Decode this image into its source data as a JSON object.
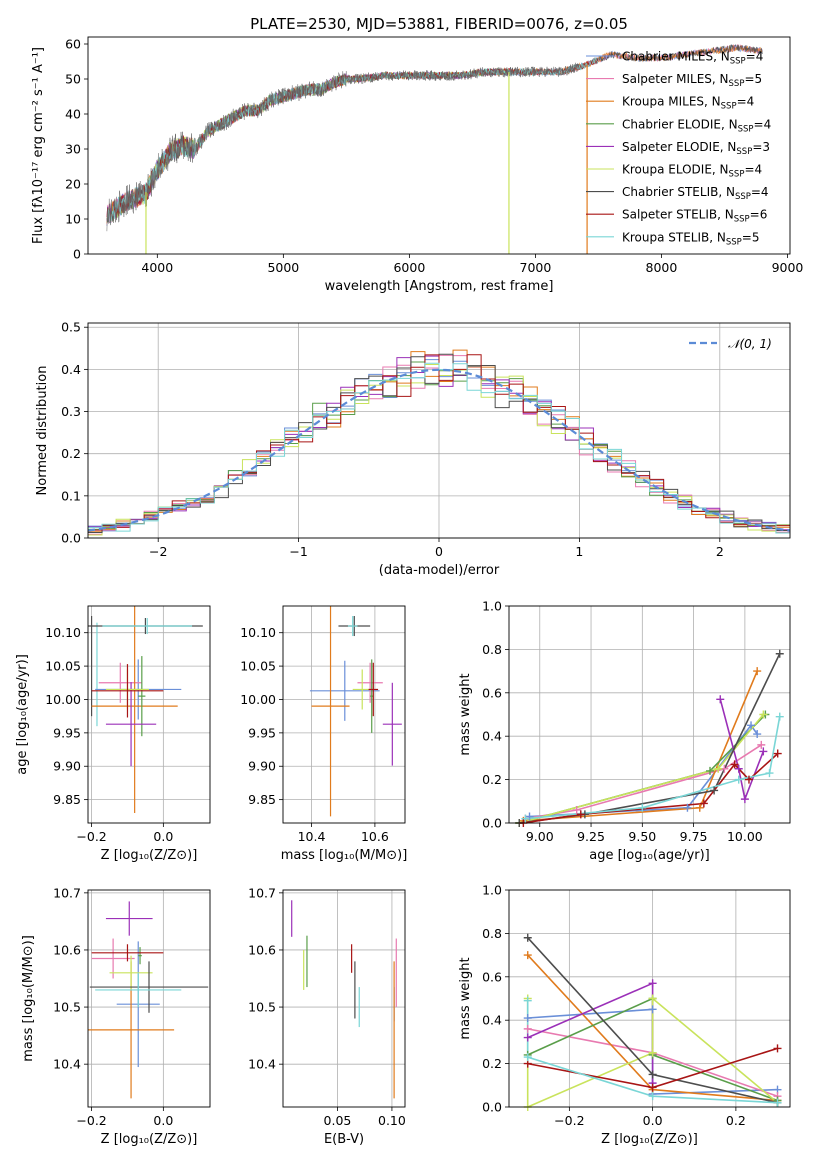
{
  "colors": {
    "Chabrier MILES": "#6a8fd8",
    "Salpeter MILES": "#e87ab0",
    "Kroupa MILES": "#e07b1d",
    "Chabrier ELODIE": "#5a9e4a",
    "Salpeter ELODIE": "#9b30b8",
    "Kroupa ELODIE": "#c9e35c",
    "Chabrier STELIB": "#4d4d4d",
    "Salpeter STELIB": "#a81515",
    "Kroupa STELIB": "#7ad6d6"
  },
  "chart_data": [
    {
      "id": "spectrum",
      "type": "line",
      "title": "PLATE=2530, MJD=53881, FIBERID=0076, z=0.05",
      "xlabel": "wavelength [Angstrom, rest frame]",
      "ylabel": "Flux [fλ10⁻¹⁷ erg cm⁻² s⁻¹ A⁻¹]",
      "xlim": [
        3450,
        9020
      ],
      "ylim": [
        0,
        62
      ],
      "xticks": [
        "4000",
        "5000",
        "6000",
        "7000",
        "8000",
        "9000"
      ],
      "yticks": [
        "0",
        "10",
        "20",
        "30",
        "40",
        "50",
        "60"
      ],
      "legend": "right",
      "continuum": [
        [
          3600,
          11
        ],
        [
          3750,
          15
        ],
        [
          3900,
          17
        ],
        [
          4000,
          24
        ],
        [
          4100,
          29
        ],
        [
          4200,
          31
        ],
        [
          4300,
          30
        ],
        [
          4400,
          35
        ],
        [
          4500,
          37
        ],
        [
          4600,
          39
        ],
        [
          4700,
          41
        ],
        [
          4800,
          41
        ],
        [
          4900,
          44
        ],
        [
          5000,
          45
        ],
        [
          5100,
          46
        ],
        [
          5200,
          47
        ],
        [
          5300,
          47
        ],
        [
          5400,
          49
        ],
        [
          5500,
          50
        ],
        [
          5600,
          50
        ],
        [
          5800,
          51
        ],
        [
          6000,
          51
        ],
        [
          6200,
          51
        ],
        [
          6400,
          51
        ],
        [
          6600,
          52
        ],
        [
          6800,
          52
        ],
        [
          7000,
          52
        ],
        [
          7200,
          52
        ],
        [
          7400,
          54
        ],
        [
          7600,
          57
        ],
        [
          7800,
          56
        ],
        [
          8000,
          56
        ],
        [
          8200,
          57
        ],
        [
          8400,
          58
        ],
        [
          8600,
          59
        ],
        [
          8800,
          58
        ]
      ],
      "data_end": 7350,
      "legend_entries": [
        {
          "model": "Chabrier MILES",
          "label": "Chabrier MILES, N",
          "sub": "SSP",
          "n": "=4"
        },
        {
          "model": "Salpeter MILES",
          "label": "Salpeter MILES, N",
          "sub": "SSP",
          "n": "=5"
        },
        {
          "model": "Kroupa MILES",
          "label": "Kroupa MILES, N",
          "sub": "SSP",
          "n": "=4"
        },
        {
          "model": "Chabrier ELODIE",
          "label": "Chabrier ELODIE, N",
          "sub": "SSP",
          "n": "=4"
        },
        {
          "model": "Salpeter ELODIE",
          "label": "Salpeter ELODIE, N",
          "sub": "SSP",
          "n": "=3"
        },
        {
          "model": "Kroupa ELODIE",
          "label": "Kroupa ELODIE, N",
          "sub": "SSP",
          "n": "=4"
        },
        {
          "model": "Chabrier STELIB",
          "label": "Chabrier STELIB, N",
          "sub": "SSP",
          "n": "=4"
        },
        {
          "model": "Salpeter STELIB",
          "label": "Salpeter STELIB, N",
          "sub": "SSP",
          "n": "=6"
        },
        {
          "model": "Kroupa STELIB",
          "label": "Kroupa STELIB, N",
          "sub": "SSP",
          "n": "=5"
        }
      ]
    },
    {
      "id": "residuals",
      "type": "line",
      "xlabel": "(data-model)/error",
      "ylabel": "Normed distribution",
      "xlim": [
        -2.5,
        2.5
      ],
      "ylim": [
        0,
        0.51
      ],
      "xticks": [
        "−2",
        "−1",
        "0",
        "1",
        "2"
      ],
      "yticks": [
        "0.0",
        "0.1",
        "0.2",
        "0.3",
        "0.4",
        "0.5"
      ],
      "grid": true,
      "bins": 50,
      "legend": "top-right",
      "legend_label": "𝒩(0, 1)",
      "gaussian": {
        "mean": 0,
        "sigma": 1
      }
    },
    {
      "id": "age_vs_Z",
      "type": "scatter",
      "xlabel": "Z [log₁₀(Z/Z⊙)]",
      "ylabel": "age  [log₁₀(age/yr)]",
      "xlim": [
        -0.21,
        0.13
      ],
      "ylim": [
        9.815,
        10.14
      ],
      "xticks": [
        "−0.2",
        "0.0"
      ],
      "yticks": [
        "9.85",
        "9.90",
        "9.95",
        "10.00",
        "10.05",
        "10.10"
      ],
      "grid": true,
      "points": [
        {
          "model": "Chabrier MILES",
          "x": -0.07,
          "xerr": 0.12,
          "y": 10.015,
          "yerr": 0.045
        },
        {
          "model": "Salpeter MILES",
          "x": -0.12,
          "xerr": 0.06,
          "y": 10.025,
          "yerr": 0.03
        },
        {
          "model": "Kroupa MILES",
          "x": -0.08,
          "xerr": 0.12,
          "y": 9.99,
          "yerr": 0.16
        },
        {
          "model": "Chabrier ELODIE",
          "x": -0.06,
          "xerr": 0.01,
          "y": 10.005,
          "yerr": 0.06
        },
        {
          "model": "Salpeter ELODIE",
          "x": -0.09,
          "xerr": 0.07,
          "y": 9.963,
          "yerr": 0.063
        },
        {
          "model": "Kroupa ELODIE",
          "x": -0.1,
          "xerr": 0.06,
          "y": 10.015,
          "yerr": 0.03
        },
        {
          "model": "Chabrier STELIB",
          "x": -0.05,
          "xerr": 0.16,
          "y": 10.11,
          "yerr": 0.012
        },
        {
          "model": "Salpeter STELIB",
          "x": -0.1,
          "xerr": 0.1,
          "y": 10.013,
          "yerr": 0.04
        },
        {
          "model": "Kroupa STELIB",
          "x": -0.045,
          "xerr": 0.125,
          "y": 10.11,
          "yerr": 0.012
        }
      ],
      "vert_errs": [
        {
          "model": "Chabrier STELIB",
          "x": -0.2,
          "ylo": 9.975,
          "yhi": 10.125
        },
        {
          "model": "Kroupa STELIB",
          "x": -0.185,
          "ylo": 9.96,
          "yhi": 10.115
        }
      ]
    },
    {
      "id": "age_vs_mass",
      "type": "scatter",
      "xlabel": "mass [log₁₀(M/M⊙)]",
      "ylabel": "",
      "xlim": [
        10.31,
        10.695
      ],
      "ylim": [
        9.815,
        10.14
      ],
      "xticks": [
        "10.4",
        "10.6"
      ],
      "yticks": [
        "9.85",
        "9.90",
        "9.95",
        "10.00",
        "10.05",
        "10.10"
      ],
      "grid": true,
      "points": [
        {
          "model": "Chabrier MILES",
          "x": 10.505,
          "xerr": 0.11,
          "y": 10.013,
          "yerr": 0.045
        },
        {
          "model": "Salpeter MILES",
          "x": 10.585,
          "xerr": 0.04,
          "y": 10.025,
          "yerr": 0.03
        },
        {
          "model": "Kroupa MILES",
          "x": 10.46,
          "xerr": 0.06,
          "y": 9.99,
          "yerr": 0.165
        },
        {
          "model": "Chabrier ELODIE",
          "x": 10.59,
          "xerr": 0.005,
          "y": 10.005,
          "yerr": 0.055
        },
        {
          "model": "Salpeter ELODIE",
          "x": 10.655,
          "xerr": 0.03,
          "y": 9.963,
          "yerr": 0.062
        },
        {
          "model": "Kroupa ELODIE",
          "x": 10.56,
          "xerr": 0.03,
          "y": 10.015,
          "yerr": 0.03
        },
        {
          "model": "Chabrier STELIB",
          "x": 10.535,
          "xerr": 0.05,
          "y": 10.11,
          "yerr": 0.015
        },
        {
          "model": "Salpeter STELIB",
          "x": 10.595,
          "xerr": 0.015,
          "y": 10.015,
          "yerr": 0.04
        },
        {
          "model": "Kroupa STELIB",
          "x": 10.53,
          "xerr": 0.015,
          "y": 10.11,
          "yerr": 0.015
        }
      ]
    },
    {
      "id": "mw_vs_age",
      "type": "line",
      "xlabel": "age  [log₁₀(age/yr)]",
      "ylabel": "mass weight",
      "xlim": [
        8.85,
        10.22
      ],
      "ylim": [
        0,
        1.0
      ],
      "xticks": [
        "9.00",
        "9.25",
        "9.50",
        "9.75",
        "10.00"
      ],
      "yticks": [
        "0.0",
        "0.2",
        "0.4",
        "0.6",
        "0.8",
        "1.0"
      ],
      "grid": true,
      "series": [
        {
          "model": "Chabrier MILES",
          "x": [
            8.95,
            9.72,
            10.03,
            10.06
          ],
          "y": [
            0.03,
            0.07,
            0.45,
            0.41
          ]
        },
        {
          "model": "Salpeter MILES",
          "x": [
            8.93,
            9.18,
            9.9,
            10.08
          ],
          "y": [
            0.02,
            0.06,
            0.25,
            0.36
          ]
        },
        {
          "model": "Kroupa MILES",
          "x": [
            8.92,
            9.78,
            10.06
          ],
          "y": [
            0.01,
            0.07,
            0.7
          ]
        },
        {
          "model": "Chabrier ELODIE",
          "x": [
            8.9,
            9.83,
            10.1
          ],
          "y": [
            0.0,
            0.24,
            0.5
          ]
        },
        {
          "model": "Salpeter ELODIE",
          "x": [
            9.88,
            9.97,
            10.0,
            10.09
          ],
          "y": [
            0.57,
            0.25,
            0.11,
            0.33
          ]
        },
        {
          "model": "Kroupa ELODIE",
          "x": [
            8.9,
            9.87,
            10.09
          ],
          "y": [
            0.0,
            0.25,
            0.5
          ]
        },
        {
          "model": "Chabrier STELIB",
          "x": [
            8.9,
            9.22,
            9.85,
            10.17
          ],
          "y": [
            0.0,
            0.04,
            0.15,
            0.78
          ]
        },
        {
          "model": "Salpeter STELIB",
          "x": [
            8.92,
            9.2,
            9.8,
            9.95,
            10.02,
            10.16
          ],
          "y": [
            0.0,
            0.04,
            0.09,
            0.27,
            0.2,
            0.32
          ]
        },
        {
          "model": "Kroupa STELIB",
          "x": [
            8.93,
            9.5,
            9.97,
            10.12,
            10.17
          ],
          "y": [
            0.02,
            0.07,
            0.2,
            0.23,
            0.49
          ]
        }
      ]
    },
    {
      "id": "mass_vs_Z",
      "type": "scatter",
      "xlabel": "Z [log₁₀(Z/Z⊙)]",
      "ylabel": "mass [log₁₀(M/M⊙)]",
      "xlim": [
        -0.21,
        0.13
      ],
      "ylim": [
        10.325,
        10.705
      ],
      "xticks": [
        "−0.2",
        "0.0"
      ],
      "yticks": [
        "10.4",
        "10.5",
        "10.6",
        "10.7"
      ],
      "grid": true,
      "points": [
        {
          "model": "Chabrier MILES",
          "x": -0.07,
          "xerr": 0.06,
          "y": 10.505,
          "yerr": 0.11
        },
        {
          "model": "Salpeter MILES",
          "x": -0.14,
          "xerr": 0.06,
          "y": 10.585,
          "yerr": 0.035
        },
        {
          "model": "Kroupa MILES",
          "x": -0.09,
          "xerr": 0.12,
          "y": 10.46,
          "yerr": 0.12
        },
        {
          "model": "Chabrier ELODIE",
          "x": -0.065,
          "xerr": 0.005,
          "y": 10.59,
          "yerr": 0.015
        },
        {
          "model": "Salpeter ELODIE",
          "x": -0.095,
          "xerr": 0.065,
          "y": 10.655,
          "yerr": 0.03
        },
        {
          "model": "Kroupa ELODIE",
          "x": -0.09,
          "xerr": 0.06,
          "y": 10.56,
          "yerr": 0.03
        },
        {
          "model": "Chabrier STELIB",
          "x": -0.04,
          "xerr": 0.165,
          "y": 10.535,
          "yerr": 0.045
        },
        {
          "model": "Salpeter STELIB",
          "x": -0.1,
          "xerr": 0.1,
          "y": 10.595,
          "yerr": 0.015
        },
        {
          "model": "Kroupa STELIB",
          "x": -0.07,
          "xerr": 0.12,
          "y": 10.53,
          "yerr": 0.03
        }
      ]
    },
    {
      "id": "mass_vs_ebv",
      "type": "scatter",
      "xlabel": "E(B-V)",
      "ylabel": "",
      "xlim": [
        0.0,
        0.112
      ],
      "ylim": [
        10.325,
        10.705
      ],
      "xticks": [
        "0.05",
        "0.10"
      ],
      "yticks": [
        "10.4",
        "10.5",
        "10.6",
        "10.7"
      ],
      "grid": true,
      "points": [
        {
          "model": "Chabrier MILES",
          "x": 0.102,
          "y": 10.505,
          "yerr": 0.03
        },
        {
          "model": "Salpeter MILES",
          "x": 0.104,
          "y": 10.56,
          "yerr": 0.06
        },
        {
          "model": "Kroupa MILES",
          "x": 0.102,
          "y": 10.46,
          "yerr": 0.12
        },
        {
          "model": "Chabrier ELODIE",
          "x": 0.022,
          "y": 10.58,
          "yerr": 0.045
        },
        {
          "model": "Salpeter ELODIE",
          "x": 0.008,
          "y": 10.655,
          "yerr": 0.032
        },
        {
          "model": "Kroupa ELODIE",
          "x": 0.019,
          "y": 10.565,
          "yerr": 0.035
        },
        {
          "model": "Chabrier STELIB",
          "x": 0.066,
          "y": 10.53,
          "yerr": 0.05
        },
        {
          "model": "Salpeter STELIB",
          "x": 0.063,
          "y": 10.585,
          "yerr": 0.025
        },
        {
          "model": "Kroupa STELIB",
          "x": 0.07,
          "y": 10.5,
          "yerr": 0.035
        }
      ]
    },
    {
      "id": "mw_vs_Z",
      "type": "line",
      "xlabel": "Z [log₁₀(Z/Z⊙)]",
      "ylabel": "mass weight",
      "xlim": [
        -0.345,
        0.33
      ],
      "ylim": [
        0,
        1.0
      ],
      "xticks": [
        "−0.2",
        "0.0",
        "0.2"
      ],
      "yticks": [
        "0.0",
        "0.2",
        "0.4",
        "0.6",
        "0.8",
        "1.0"
      ],
      "grid": true,
      "series": [
        {
          "model": "Chabrier MILES",
          "x": [
            -0.3,
            0.0,
            0.0,
            0.3
          ],
          "y": [
            0.41,
            0.45,
            0.06,
            0.08
          ]
        },
        {
          "model": "Salpeter MILES",
          "x": [
            -0.3,
            0.0,
            0.3
          ],
          "y": [
            0.36,
            0.25,
            0.05
          ]
        },
        {
          "model": "Kroupa MILES",
          "x": [
            -0.3,
            0.0,
            0.3
          ],
          "y": [
            0.7,
            0.08,
            0.03
          ]
        },
        {
          "model": "Chabrier ELODIE",
          "x": [
            -0.3,
            0.0,
            0.0,
            0.3
          ],
          "y": [
            0.24,
            0.5,
            0.24,
            0.03
          ]
        },
        {
          "model": "Salpeter ELODIE",
          "x": [
            -0.3,
            0.0,
            0.0
          ],
          "y": [
            0.32,
            0.57,
            0.11
          ]
        },
        {
          "model": "Kroupa ELODIE",
          "x": [
            -0.3,
            -0.3,
            0.0,
            0.0,
            0.3
          ],
          "y": [
            0.5,
            0.0,
            0.25,
            0.5,
            0.02
          ]
        },
        {
          "model": "Chabrier STELIB",
          "x": [
            -0.3,
            0.0,
            0.3
          ],
          "y": [
            0.78,
            0.15,
            0.02
          ]
        },
        {
          "model": "Salpeter STELIB",
          "x": [
            -0.3,
            0.0,
            0.3
          ],
          "y": [
            0.2,
            0.09,
            0.27
          ]
        },
        {
          "model": "Kroupa STELIB",
          "x": [
            -0.3,
            -0.3,
            0.0,
            0.3
          ],
          "y": [
            0.49,
            0.23,
            0.05,
            0.02
          ]
        }
      ]
    }
  ]
}
